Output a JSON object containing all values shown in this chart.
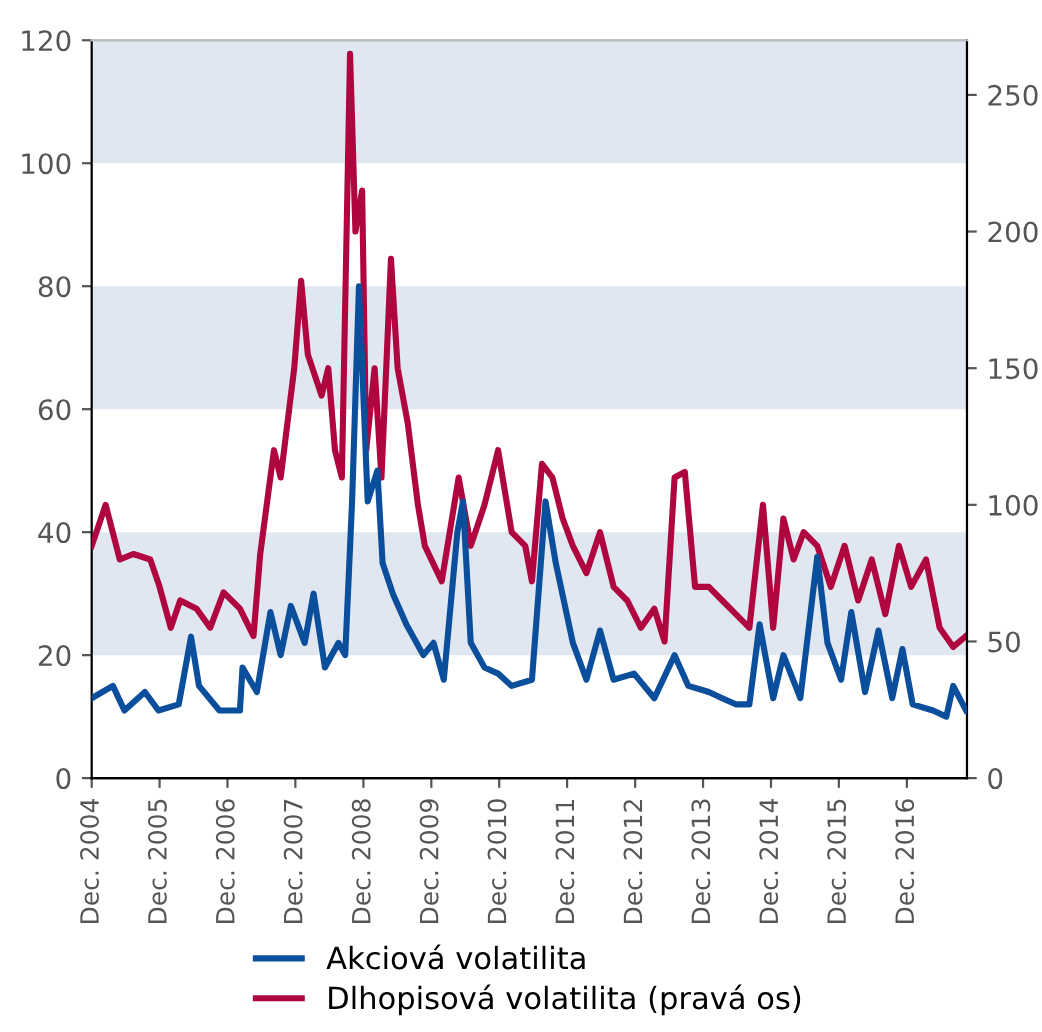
{
  "chart_data": {
    "type": "line",
    "legend": "bottom",
    "grid": false,
    "xlim": [
      "2004-12-01",
      "2017-10-20"
    ],
    "xticks": [
      {
        "value": "2004-12-01",
        "label": "Dec. 2004"
      },
      {
        "value": "2005-12-01",
        "label": "Dec. 2005"
      },
      {
        "value": "2006-12-01",
        "label": "Dec. 2006"
      },
      {
        "value": "2007-12-01",
        "label": "Dec. 2007"
      },
      {
        "value": "2008-12-01",
        "label": "Dec. 2008"
      },
      {
        "value": "2009-12-01",
        "label": "Dec. 2009"
      },
      {
        "value": "2010-12-01",
        "label": "Dec. 2010"
      },
      {
        "value": "2011-12-01",
        "label": "Dec. 2011"
      },
      {
        "value": "2012-12-01",
        "label": "Dec. 2012"
      },
      {
        "value": "2013-12-01",
        "label": "Dec. 2013"
      },
      {
        "value": "2014-12-01",
        "label": "Dec. 2014"
      },
      {
        "value": "2015-12-01",
        "label": "Dec. 2015"
      },
      {
        "value": "2016-12-01",
        "label": "Dec. 2016"
      }
    ],
    "ylim": [
      0,
      120
    ],
    "yticks": [
      0,
      20,
      40,
      60,
      80,
      100,
      120
    ],
    "y2lim": [
      0,
      270
    ],
    "y2ticks": [
      0,
      50,
      100,
      150,
      200,
      250
    ],
    "bands": [
      {
        "axis": "y",
        "from": 20,
        "to": 40,
        "color": "#e1e7f1"
      },
      {
        "axis": "y",
        "from": 60,
        "to": 80,
        "color": "#e1e7f1"
      },
      {
        "axis": "y",
        "from": 100,
        "to": 120,
        "color": "#e1e7f1"
      }
    ],
    "series": [
      {
        "name": "Akciová volatilita",
        "color": "#0b4f9c",
        "axis": "y",
        "x": [
          "2004-12-01",
          "2005-03-25",
          "2005-05-26",
          "2005-09-13",
          "2005-11-25",
          "2006-03-14",
          "2006-05-19",
          "2006-07-01",
          "2006-10-19",
          "2007-02-06",
          "2007-02-20",
          "2007-05-08",
          "2007-07-20",
          "2007-09-13",
          "2007-11-07",
          "2008-01-20",
          "2008-03-08",
          "2008-05-08",
          "2008-07-20",
          "2008-08-25",
          "2008-10-01",
          "2008-11-07",
          "2008-12-24",
          "2009-02-14",
          "2009-03-14",
          "2009-05-08",
          "2009-07-20",
          "2009-10-19",
          "2009-12-13",
          "2010-02-06",
          "2010-04-20",
          "2010-05-20",
          "2010-07-01",
          "2010-09-13",
          "2010-11-25",
          "2011-02-06",
          "2011-05-26",
          "2011-08-07",
          "2011-10-01",
          "2012-01-01",
          "2012-03-14",
          "2012-05-26",
          "2012-08-07",
          "2012-11-25",
          "2013-03-14",
          "2013-07-01",
          "2013-09-13",
          "2014-01-01",
          "2014-03-14",
          "2014-05-26",
          "2014-08-07",
          "2014-10-01",
          "2014-12-13",
          "2015-02-06",
          "2015-05-08",
          "2015-08-07",
          "2015-10-01",
          "2015-12-13",
          "2016-02-06",
          "2016-04-20",
          "2016-07-01",
          "2016-09-13",
          "2016-11-07",
          "2017-01-01",
          "2017-04-20",
          "2017-07-01",
          "2017-08-07",
          "2017-10-15"
        ],
        "values": [
          13,
          15,
          11,
          14,
          11,
          12,
          23,
          15,
          11,
          11,
          18,
          14,
          27,
          20,
          28,
          22,
          30,
          18,
          22,
          20,
          45,
          80,
          45,
          50,
          35,
          30,
          25,
          20,
          22,
          16,
          40,
          45,
          22,
          18,
          17,
          15,
          16,
          45,
          35,
          22,
          16,
          24,
          16,
          17,
          13,
          20,
          15,
          14,
          13,
          12,
          12,
          25,
          13,
          20,
          13,
          36,
          22,
          16,
          27,
          14,
          24,
          13,
          21,
          12,
          11,
          10,
          15,
          11
        ]
      },
      {
        "name": "Dlhopisová volatilita (pravá os)",
        "color": "#b0063f",
        "axis": "y2",
        "x": [
          "2004-12-01",
          "2005-02-14",
          "2005-05-01",
          "2005-07-13",
          "2005-10-12",
          "2005-12-01",
          "2006-01-30",
          "2006-03-22",
          "2006-06-18",
          "2006-08-30",
          "2006-11-10",
          "2007-02-06",
          "2007-04-20",
          "2007-05-26",
          "2007-08-08",
          "2007-09-13",
          "2007-11-25",
          "2008-01-01",
          "2008-02-06",
          "2008-04-20",
          "2008-05-26",
          "2008-07-01",
          "2008-08-07",
          "2008-09-20",
          "2008-10-19",
          "2008-11-24",
          "2008-12-16",
          "2009-01-30",
          "2009-03-08",
          "2009-04-28",
          "2009-06-03",
          "2009-07-27",
          "2009-09-20",
          "2009-10-27",
          "2010-01-26",
          "2010-04-27",
          "2010-07-01",
          "2010-09-13",
          "2010-11-25",
          "2011-02-06",
          "2011-04-20",
          "2011-05-26",
          "2011-07-19",
          "2011-09-13",
          "2011-11-07",
          "2012-01-01",
          "2012-03-14",
          "2012-05-26",
          "2012-08-07",
          "2012-10-19",
          "2013-01-01",
          "2013-03-14",
          "2013-05-08",
          "2013-07-01",
          "2013-08-25",
          "2013-10-19",
          "2014-01-01",
          "2014-03-14",
          "2014-05-26",
          "2014-08-07",
          "2014-10-19",
          "2014-12-13",
          "2015-02-06",
          "2015-04-02",
          "2015-05-26",
          "2015-08-07",
          "2015-10-19",
          "2016-01-01",
          "2016-03-14",
          "2016-05-26",
          "2016-08-07",
          "2016-10-19",
          "2016-12-24",
          "2017-03-14",
          "2017-05-26",
          "2017-08-07",
          "2017-10-15"
        ],
        "values": [
          85,
          100,
          80,
          82,
          80,
          70,
          55,
          65,
          62,
          55,
          68,
          62,
          52,
          82,
          120,
          110,
          150,
          182,
          155,
          140,
          150,
          120,
          110,
          265,
          200,
          215,
          120,
          150,
          110,
          190,
          150,
          130,
          100,
          85,
          72,
          110,
          85,
          100,
          120,
          90,
          85,
          72,
          115,
          110,
          95,
          85,
          75,
          90,
          70,
          65,
          55,
          62,
          50,
          110,
          112,
          70,
          70,
          65,
          60,
          55,
          100,
          55,
          95,
          80,
          90,
          85,
          70,
          85,
          65,
          80,
          60,
          85,
          70,
          80,
          55,
          48,
          52
        ]
      }
    ]
  }
}
